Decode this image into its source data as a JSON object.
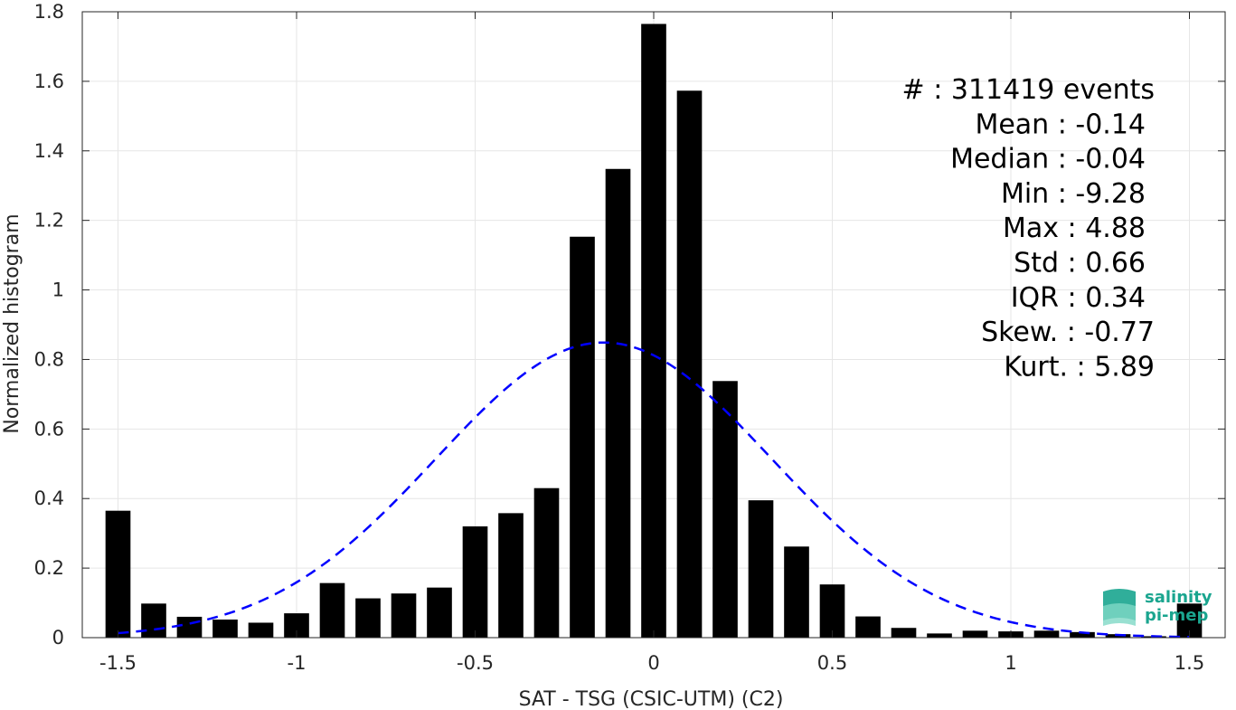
{
  "chart_data": {
    "type": "bar",
    "title": "",
    "xlabel": "SAT - TSG (CSIC-UTM) (C2)",
    "ylabel": "Normalized histogram",
    "xlim": [
      -1.6,
      1.6
    ],
    "ylim": [
      0,
      1.8
    ],
    "grid": true,
    "bar_width": 0.07,
    "x": [
      -1.5,
      -1.4,
      -1.3,
      -1.2,
      -1.1,
      -1.0,
      -0.9,
      -0.8,
      -0.7,
      -0.6,
      -0.5,
      -0.4,
      -0.3,
      -0.2,
      -0.1,
      0.0,
      0.1,
      0.2,
      0.3,
      0.4,
      0.5,
      0.6,
      0.7,
      0.8,
      0.9,
      1.0,
      1.1,
      1.2,
      1.3,
      1.4,
      1.5
    ],
    "values": [
      0.365,
      0.098,
      0.06,
      0.052,
      0.043,
      0.07,
      0.157,
      0.113,
      0.127,
      0.144,
      0.32,
      0.358,
      0.43,
      1.153,
      1.348,
      1.765,
      1.573,
      0.738,
      0.395,
      0.262,
      0.153,
      0.061,
      0.028,
      0.012,
      0.02,
      0.018,
      0.02,
      0.016,
      0.01,
      0.004,
      0.098
    ],
    "xticks": [
      -1.5,
      -1,
      -0.5,
      0,
      0.5,
      1,
      1.5
    ],
    "xtick_labels": [
      "-1.5",
      "-1",
      "-0.5",
      "0",
      "0.5",
      "1",
      "1.5"
    ],
    "yticks": [
      0,
      0.2,
      0.4,
      0.6,
      0.8,
      1,
      1.2,
      1.4,
      1.6,
      1.8
    ],
    "ytick_labels": [
      "0",
      "0.2",
      "0.4",
      "0.6",
      "0.8",
      "1",
      "1.2",
      "1.4",
      "1.6",
      "1.8"
    ],
    "fit": {
      "type": "gaussian",
      "mean": -0.14,
      "std": 0.47,
      "color": "#0000ff",
      "style": "dashed"
    },
    "bar_color": "#000000",
    "stats": [
      "#  : 311419 events",
      "Mean : -0.14",
      "Median : -0.04",
      "Min : -9.28",
      "Max : 4.88",
      "Std : 0.66",
      "IQR : 0.34",
      "Skew. : -0.77",
      "Kurt. : 5.89"
    ]
  },
  "logo": {
    "line1": "salinity",
    "line2": "pi-mep",
    "color": "#1aa58f"
  }
}
